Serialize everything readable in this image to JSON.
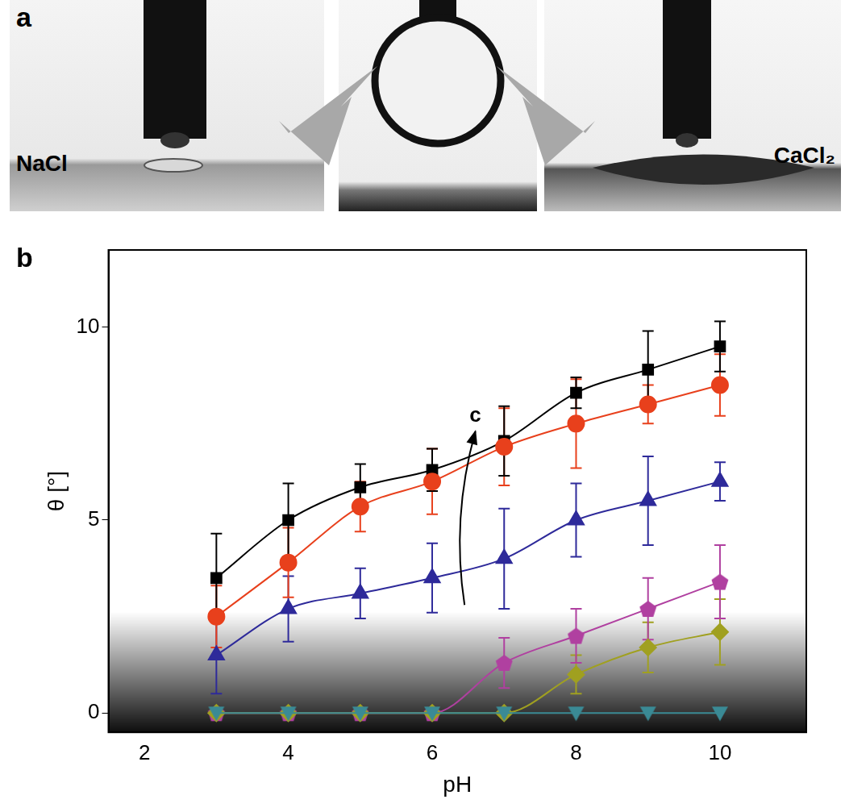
{
  "panel_a": {
    "label": "a",
    "left_label": "NaCl",
    "right_label": "CaCl₂"
  },
  "chart_data": {
    "type": "line",
    "panel_label": "b",
    "x_label": "pH",
    "y_label": "θ [°]",
    "xlim": [
      1.5,
      11.2
    ],
    "xticks": [
      2,
      4,
      6,
      8,
      10
    ],
    "ylim": [
      -0.5,
      12
    ],
    "yticks": [
      0,
      5,
      10
    ],
    "grid": false,
    "annotations": [
      {
        "text": "c",
        "x_start": 6.45,
        "y_start": 2.8,
        "x": 6.6,
        "y": 7.3
      }
    ],
    "series": [
      {
        "color": "#3a8a95",
        "marker": "triangle_down",
        "line_style": "solid",
        "x": [
          3,
          4,
          5,
          6,
          7,
          8,
          9,
          10
        ],
        "values": [
          0,
          0,
          0,
          0,
          0,
          0,
          0,
          0
        ],
        "errors": [
          0,
          0,
          0,
          0,
          0,
          0,
          0,
          0
        ]
      },
      {
        "color": "#a0a020",
        "marker": "diamond",
        "line_style": "solid",
        "x": [
          3,
          4,
          5,
          6,
          7,
          8,
          9,
          10
        ],
        "values": [
          0,
          0,
          0,
          0,
          0,
          1.0,
          1.7,
          2.1
        ],
        "errors": [
          0,
          0,
          0,
          0,
          0,
          0.5,
          0.65,
          0.85
        ]
      },
      {
        "color": "#b040a0",
        "marker": "pentagon",
        "line_style": "solid",
        "x": [
          3,
          4,
          5,
          6,
          7,
          8,
          9,
          10
        ],
        "values": [
          0,
          0,
          0,
          0,
          1.3,
          2.0,
          2.7,
          3.4
        ],
        "errors": [
          0,
          0,
          0,
          0,
          0.65,
          0.7,
          0.8,
          0.95
        ]
      },
      {
        "color": "#2e2a9a",
        "marker": "triangle",
        "line_style": "solid",
        "x": [
          3,
          4,
          5,
          6,
          7,
          8,
          9,
          10
        ],
        "values": [
          1.5,
          2.7,
          3.1,
          3.5,
          4.0,
          5.0,
          5.5,
          6.0
        ],
        "errors": [
          1.0,
          0.85,
          0.65,
          0.9,
          1.3,
          0.95,
          1.15,
          0.5
        ]
      },
      {
        "color": "#e8401c",
        "marker": "circle",
        "line_style": "solid",
        "x": [
          3,
          4,
          5,
          6,
          7,
          8,
          9,
          10
        ],
        "values": [
          2.5,
          3.9,
          5.35,
          6.0,
          6.9,
          7.5,
          8.0,
          8.5
        ],
        "errors": [
          0.8,
          0.9,
          0.65,
          0.85,
          1.0,
          1.15,
          0.5,
          0.8
        ]
      },
      {
        "color": "#000000",
        "marker": "square",
        "line_style": "solid",
        "x": [
          3,
          4,
          5,
          6,
          7,
          8,
          9,
          10
        ],
        "values": [
          3.5,
          5.0,
          5.85,
          6.3,
          7.05,
          8.3,
          8.9,
          9.5
        ],
        "errors": [
          1.15,
          0.95,
          0.6,
          0.55,
          0.9,
          0.4,
          1.0,
          0.65
        ]
      }
    ]
  }
}
